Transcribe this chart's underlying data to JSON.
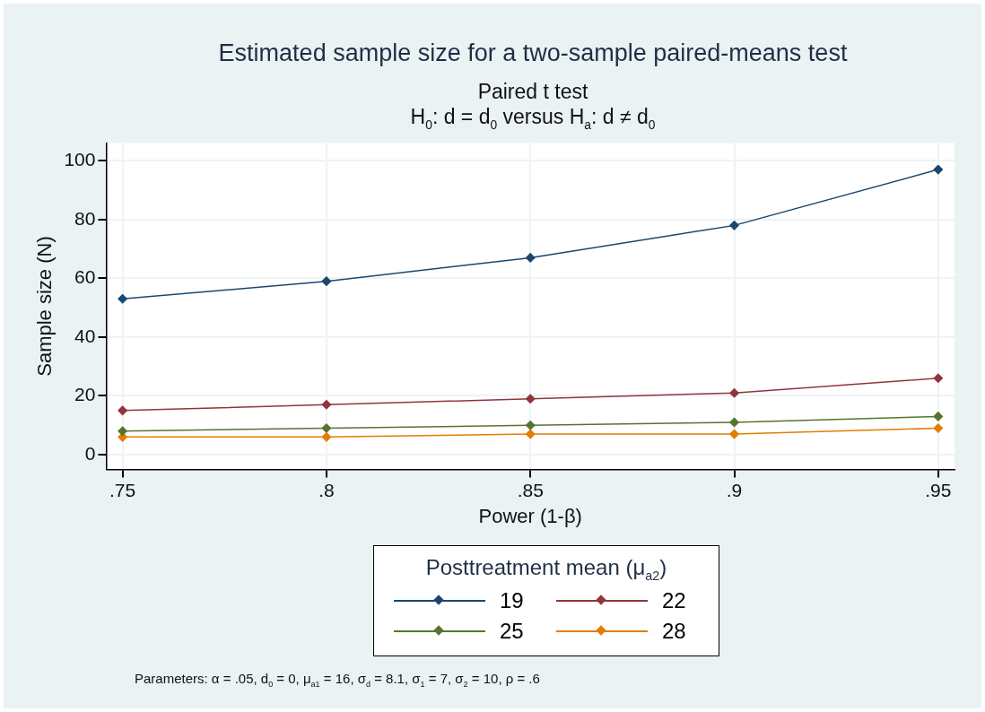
{
  "chart_data": {
    "type": "line",
    "title": "Estimated sample size for a two-sample paired-means test",
    "subtitle": "Paired t test\nH$_{0}$: d = d$_{0}$  versus  H$_{a}$: d ≠ d$_{0}$",
    "xlabel": "Power (1-β)",
    "ylabel": "Sample size (N)",
    "legend_title": "Posttreatment mean (μ$_{a2}$)",
    "annotations": [
      "Parameters: α = .05, d$_{0}$ = 0, μ$_{a1}$ = 16, σ$_{d}$ = 8.1, σ$_{1}$ = 7, σ$_{2}$ = 10, ρ = .6"
    ],
    "x": [
      0.75,
      0.8,
      0.85,
      0.9,
      0.95
    ],
    "series": [
      {
        "name": "19",
        "color": "#1a476f",
        "values": [
          53,
          59,
          67,
          78,
          97
        ]
      },
      {
        "name": "22",
        "color": "#90353b",
        "values": [
          15,
          17,
          19,
          21,
          26
        ]
      },
      {
        "name": "25",
        "color": "#55752f",
        "values": [
          8,
          9,
          10,
          11,
          13
        ]
      },
      {
        "name": "28",
        "color": "#e37e00",
        "values": [
          6,
          6,
          7,
          7,
          9
        ]
      }
    ],
    "xlim": [
      0.746,
      0.954
    ],
    "xticks": [
      {
        "value": 0.75,
        "label": ".75"
      },
      {
        "value": 0.8,
        "label": ".8"
      },
      {
        "value": 0.85,
        "label": ".85"
      },
      {
        "value": 0.9,
        "label": ".9"
      },
      {
        "value": 0.95,
        "label": ".95"
      }
    ],
    "ylim": [
      -5,
      106
    ],
    "yticks": [
      0,
      20,
      40,
      60,
      80,
      100
    ],
    "grid": true,
    "legend": "bottom",
    "marker": "diamond",
    "line_style": "solid"
  }
}
